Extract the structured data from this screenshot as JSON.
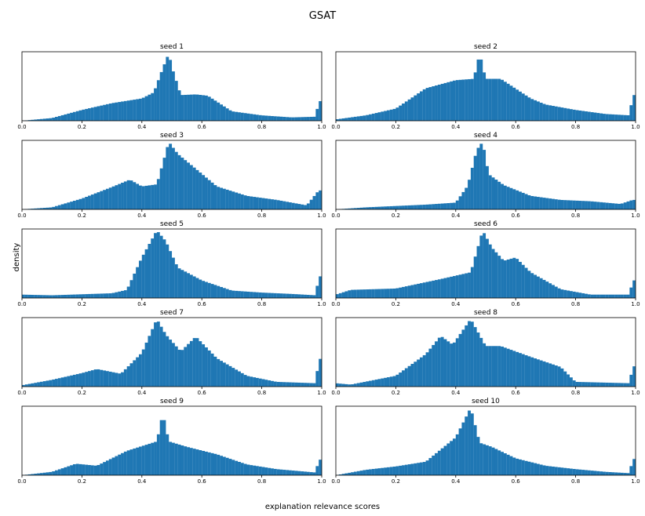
{
  "figure": {
    "title": "GSAT",
    "xlabel": "explanation relevance scores",
    "ylabel": "density",
    "bar_color": "#1f77b4"
  },
  "chart_data": [
    {
      "type": "bar",
      "title": "seed 1",
      "xlim": [
        0,
        1
      ],
      "bins": 100,
      "xticks": [
        "0.0",
        "0.2",
        "0.4",
        "0.6",
        "0.8",
        "1.0"
      ],
      "peaks": [
        [
          0.0,
          0.0
        ],
        [
          0.1,
          0.04
        ],
        [
          0.2,
          0.16
        ],
        [
          0.3,
          0.26
        ],
        [
          0.4,
          0.33
        ],
        [
          0.44,
          0.42
        ],
        [
          0.47,
          0.78
        ],
        [
          0.49,
          1.0
        ],
        [
          0.5,
          0.8
        ],
        [
          0.53,
          0.38
        ],
        [
          0.58,
          0.39
        ],
        [
          0.62,
          0.37
        ],
        [
          0.7,
          0.14
        ],
        [
          0.8,
          0.08
        ],
        [
          0.9,
          0.05
        ],
        [
          0.98,
          0.06
        ],
        [
          0.99,
          0.29
        ]
      ]
    },
    {
      "type": "bar",
      "title": "seed 2",
      "xlim": [
        0,
        1
      ],
      "bins": 100,
      "xticks": [
        "0.0",
        "0.2",
        "0.4",
        "0.6",
        "0.8",
        "1.0"
      ],
      "peaks": [
        [
          0.0,
          0.02
        ],
        [
          0.1,
          0.08
        ],
        [
          0.2,
          0.18
        ],
        [
          0.3,
          0.48
        ],
        [
          0.4,
          0.6
        ],
        [
          0.46,
          0.62
        ],
        [
          0.48,
          1.0
        ],
        [
          0.5,
          0.62
        ],
        [
          0.55,
          0.62
        ],
        [
          0.65,
          0.33
        ],
        [
          0.7,
          0.24
        ],
        [
          0.8,
          0.16
        ],
        [
          0.9,
          0.1
        ],
        [
          0.98,
          0.08
        ],
        [
          0.99,
          0.38
        ]
      ]
    },
    {
      "type": "bar",
      "title": "seed 3",
      "xlim": [
        0,
        1
      ],
      "bins": 100,
      "xticks": [
        "0.0",
        "0.2",
        "0.4",
        "0.6",
        "0.8",
        "1.0"
      ],
      "peaks": [
        [
          0.0,
          0.0
        ],
        [
          0.1,
          0.03
        ],
        [
          0.2,
          0.16
        ],
        [
          0.3,
          0.33
        ],
        [
          0.36,
          0.44
        ],
        [
          0.4,
          0.34
        ],
        [
          0.45,
          0.37
        ],
        [
          0.49,
          1.0
        ],
        [
          0.52,
          0.82
        ],
        [
          0.58,
          0.6
        ],
        [
          0.65,
          0.34
        ],
        [
          0.75,
          0.2
        ],
        [
          0.85,
          0.14
        ],
        [
          0.95,
          0.06
        ],
        [
          0.99,
          0.28
        ]
      ]
    },
    {
      "type": "bar",
      "title": "seed 4",
      "xlim": [
        0,
        1
      ],
      "bins": 100,
      "xticks": [
        "0.0",
        "0.2",
        "0.4",
        "0.6",
        "0.8",
        "1.0"
      ],
      "peaks": [
        [
          0.0,
          0.0
        ],
        [
          0.1,
          0.03
        ],
        [
          0.2,
          0.05
        ],
        [
          0.3,
          0.07
        ],
        [
          0.4,
          0.1
        ],
        [
          0.44,
          0.35
        ],
        [
          0.47,
          0.88
        ],
        [
          0.49,
          1.0
        ],
        [
          0.51,
          0.52
        ],
        [
          0.56,
          0.36
        ],
        [
          0.65,
          0.2
        ],
        [
          0.75,
          0.14
        ],
        [
          0.85,
          0.12
        ],
        [
          0.95,
          0.08
        ],
        [
          0.99,
          0.14
        ]
      ]
    },
    {
      "type": "bar",
      "title": "seed 5",
      "xlim": [
        0,
        1
      ],
      "bins": 100,
      "xticks": [
        "0.0",
        "0.2",
        "0.4",
        "0.6",
        "0.8",
        "1.0"
      ],
      "peaks": [
        [
          0.0,
          0.05
        ],
        [
          0.1,
          0.04
        ],
        [
          0.3,
          0.07
        ],
        [
          0.35,
          0.12
        ],
        [
          0.4,
          0.6
        ],
        [
          0.45,
          1.0
        ],
        [
          0.48,
          0.84
        ],
        [
          0.52,
          0.45
        ],
        [
          0.6,
          0.26
        ],
        [
          0.7,
          0.11
        ],
        [
          0.8,
          0.08
        ],
        [
          0.9,
          0.06
        ],
        [
          0.98,
          0.04
        ],
        [
          0.99,
          0.32
        ]
      ]
    },
    {
      "type": "bar",
      "title": "seed 6",
      "xlim": [
        0,
        1
      ],
      "bins": 100,
      "xticks": [
        "0.0",
        "0.2",
        "0.4",
        "0.6",
        "0.8",
        "1.0"
      ],
      "peaks": [
        [
          0.0,
          0.05
        ],
        [
          0.05,
          0.12
        ],
        [
          0.2,
          0.14
        ],
        [
          0.35,
          0.28
        ],
        [
          0.45,
          0.38
        ],
        [
          0.49,
          1.0
        ],
        [
          0.52,
          0.75
        ],
        [
          0.56,
          0.55
        ],
        [
          0.6,
          0.6
        ],
        [
          0.65,
          0.38
        ],
        [
          0.75,
          0.13
        ],
        [
          0.85,
          0.05
        ],
        [
          0.98,
          0.05
        ],
        [
          0.99,
          0.26
        ]
      ]
    },
    {
      "type": "bar",
      "title": "seed 7",
      "xlim": [
        0,
        1
      ],
      "bins": 100,
      "xticks": [
        "0.0",
        "0.2",
        "0.4",
        "0.6",
        "0.8",
        "1.0"
      ],
      "peaks": [
        [
          0.0,
          0.02
        ],
        [
          0.1,
          0.1
        ],
        [
          0.2,
          0.2
        ],
        [
          0.25,
          0.26
        ],
        [
          0.33,
          0.19
        ],
        [
          0.4,
          0.5
        ],
        [
          0.45,
          1.0
        ],
        [
          0.48,
          0.77
        ],
        [
          0.53,
          0.52
        ],
        [
          0.58,
          0.74
        ],
        [
          0.65,
          0.42
        ],
        [
          0.75,
          0.16
        ],
        [
          0.85,
          0.07
        ],
        [
          0.98,
          0.05
        ],
        [
          0.99,
          0.41
        ]
      ]
    },
    {
      "type": "bar",
      "title": "seed 8",
      "xlim": [
        0,
        1
      ],
      "bins": 100,
      "xticks": [
        "0.0",
        "0.2",
        "0.4",
        "0.6",
        "0.8",
        "1.0"
      ],
      "peaks": [
        [
          0.0,
          0.05
        ],
        [
          0.05,
          0.03
        ],
        [
          0.2,
          0.16
        ],
        [
          0.3,
          0.48
        ],
        [
          0.35,
          0.75
        ],
        [
          0.39,
          0.62
        ],
        [
          0.45,
          1.0
        ],
        [
          0.5,
          0.6
        ],
        [
          0.55,
          0.6
        ],
        [
          0.65,
          0.44
        ],
        [
          0.75,
          0.29
        ],
        [
          0.8,
          0.07
        ],
        [
          0.98,
          0.05
        ],
        [
          0.99,
          0.3
        ]
      ]
    },
    {
      "type": "bar",
      "title": "seed 9",
      "xlim": [
        0,
        1
      ],
      "bins": 100,
      "xticks": [
        "0.0",
        "0.2",
        "0.4",
        "0.6",
        "0.8",
        "1.0"
      ],
      "peaks": [
        [
          0.0,
          0.0
        ],
        [
          0.1,
          0.05
        ],
        [
          0.18,
          0.17
        ],
        [
          0.25,
          0.14
        ],
        [
          0.35,
          0.36
        ],
        [
          0.45,
          0.5
        ],
        [
          0.47,
          0.92
        ],
        [
          0.49,
          0.5
        ],
        [
          0.55,
          0.42
        ],
        [
          0.65,
          0.31
        ],
        [
          0.75,
          0.16
        ],
        [
          0.85,
          0.09
        ],
        [
          0.98,
          0.04
        ],
        [
          0.99,
          0.23
        ]
      ]
    },
    {
      "type": "bar",
      "title": "seed 10",
      "xlim": [
        0,
        1
      ],
      "bins": 100,
      "xticks": [
        "0.0",
        "0.2",
        "0.4",
        "0.6",
        "0.8",
        "1.0"
      ],
      "peaks": [
        [
          0.0,
          0.0
        ],
        [
          0.1,
          0.08
        ],
        [
          0.2,
          0.13
        ],
        [
          0.3,
          0.2
        ],
        [
          0.35,
          0.38
        ],
        [
          0.4,
          0.56
        ],
        [
          0.45,
          1.0
        ],
        [
          0.48,
          0.48
        ],
        [
          0.52,
          0.42
        ],
        [
          0.6,
          0.25
        ],
        [
          0.7,
          0.14
        ],
        [
          0.8,
          0.09
        ],
        [
          0.9,
          0.05
        ],
        [
          0.98,
          0.03
        ],
        [
          0.99,
          0.24
        ]
      ]
    }
  ]
}
